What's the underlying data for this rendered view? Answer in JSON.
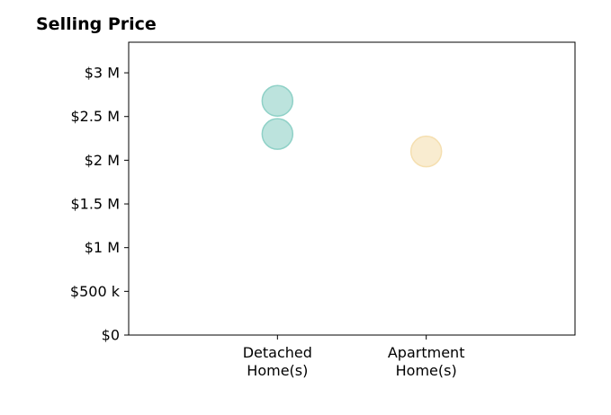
{
  "chart_data": {
    "type": "scatter",
    "title": "Selling Price",
    "xlabel": "",
    "ylabel": "",
    "categories": [
      [
        "Detached",
        "Home(s)"
      ],
      [
        "Apartment",
        "Home(s)"
      ]
    ],
    "xlim": [
      -1,
      2
    ],
    "ylim": [
      0,
      3350000
    ],
    "yticks": [
      {
        "value": 0,
        "label": "$0"
      },
      {
        "value": 500000,
        "label": "$500 k"
      },
      {
        "value": 1000000,
        "label": "$1 M"
      },
      {
        "value": 1500000,
        "label": "$1.5 M"
      },
      {
        "value": 2000000,
        "label": "$2 M"
      },
      {
        "value": 2500000,
        "label": "$2.5 M"
      },
      {
        "value": 3000000,
        "label": "$3 M"
      }
    ],
    "series": [
      {
        "category_index": 0,
        "color": "#8fd1c7",
        "points": [
          2680000,
          2300000
        ]
      },
      {
        "category_index": 1,
        "color": "#f5dfb0",
        "points": [
          2100000
        ]
      }
    ],
    "grid": false,
    "legend": "none"
  }
}
